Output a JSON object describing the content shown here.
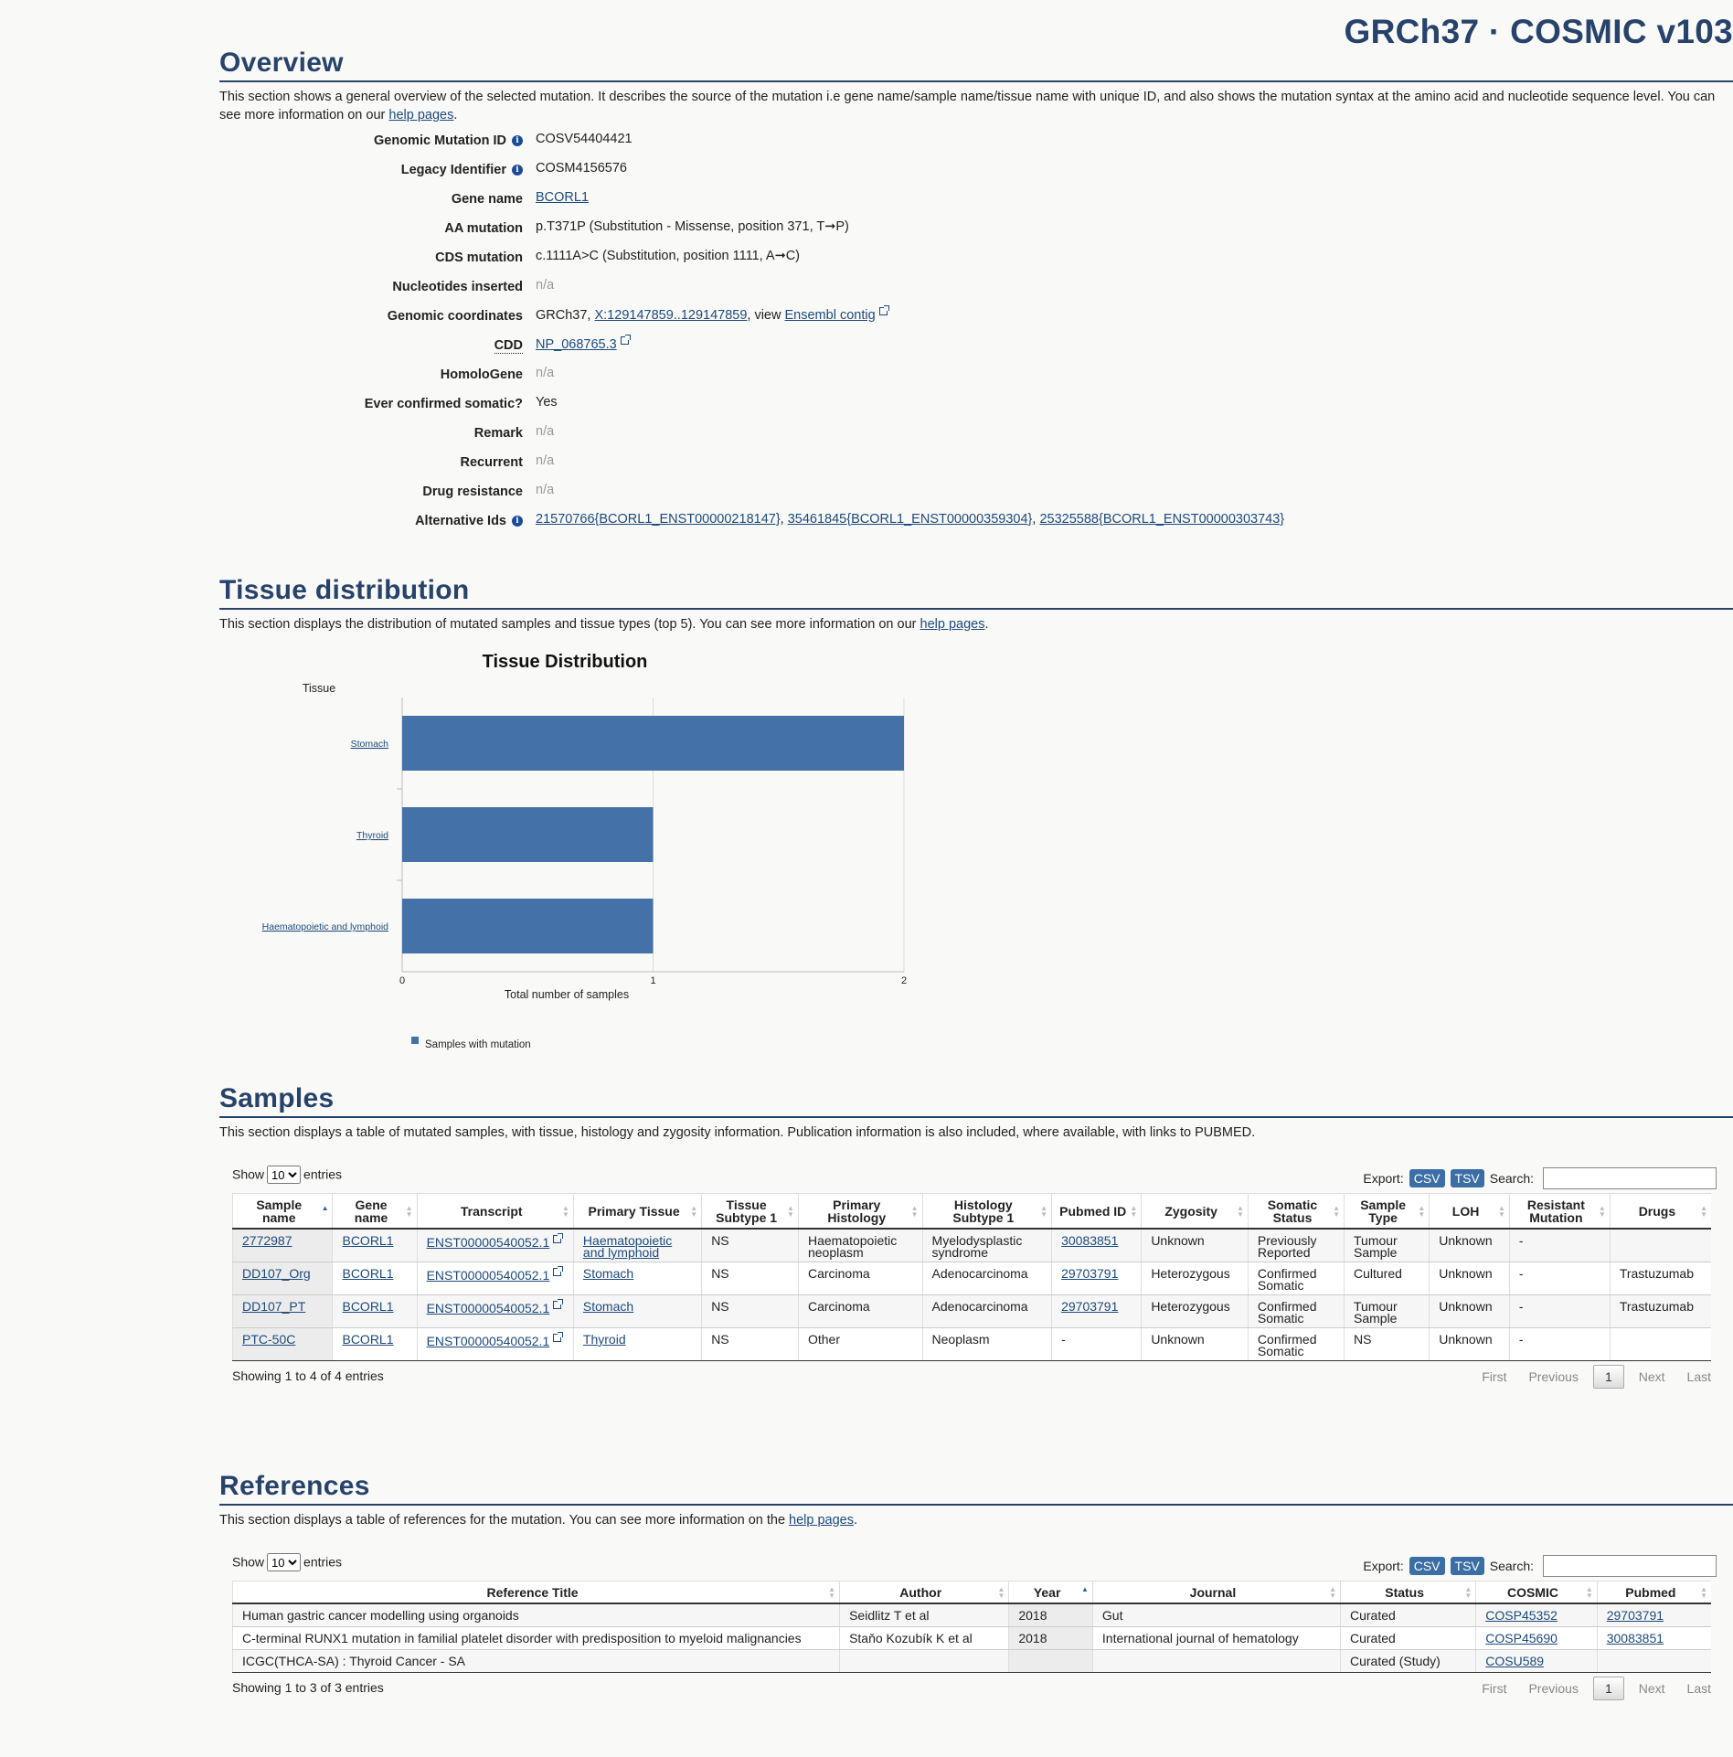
{
  "header": {
    "build": "GRCh37 · COSMIC v103"
  },
  "overview": {
    "title": "Overview",
    "intro_text": "This section shows a general overview of the selected mutation. It describes the source of the mutation i.e gene name/sample name/tissue name with unique ID, and also shows the mutation syntax at the amino acid and nucleotide sequence level. You can see more information on our ",
    "intro_link": "help pages",
    "intro_end": ".",
    "fields": {
      "genomic_mutation_id": {
        "label": "Genomic Mutation ID",
        "value": "COSV54404421"
      },
      "legacy_identifier": {
        "label": "Legacy Identifier",
        "value": "COSM4156576"
      },
      "gene_name": {
        "label": "Gene name",
        "value": "BCORL1"
      },
      "aa_mutation": {
        "label": "AA mutation",
        "value": "p.T371P (Substitution - Missense, position 371, T➞P)"
      },
      "cds_mutation": {
        "label": "CDS mutation",
        "value": "c.1111A>C (Substitution, position 1111, A➞C)"
      },
      "nucleotides_inserted": {
        "label": "Nucleotides inserted",
        "value": "n/a"
      },
      "genomic_coordinates": {
        "label": "Genomic coordinates",
        "prefix": "GRCh37, ",
        "link": "X:129147859..129147859",
        "middle": ", view ",
        "link2": "Ensembl contig"
      },
      "cdd": {
        "label": "CDD",
        "value": "NP_068765.3"
      },
      "homologene": {
        "label": "HomoloGene",
        "value": "n/a"
      },
      "ever_confirmed": {
        "label": "Ever confirmed somatic?",
        "value": "Yes"
      },
      "remark": {
        "label": "Remark",
        "value": "n/a"
      },
      "recurrent": {
        "label": "Recurrent",
        "value": "n/a"
      },
      "drug_resistance": {
        "label": "Drug resistance",
        "value": "n/a"
      },
      "alternative_ids": {
        "label": "Alternative Ids",
        "ids": [
          "21570766{BCORL1_ENST00000218147}",
          "35461845{BCORL1_ENST00000359304}",
          "25325588{BCORL1_ENST00000303743}"
        ],
        "sep": ", "
      }
    }
  },
  "tissue": {
    "title": "Tissue distribution",
    "intro_text": "This section displays the distribution of mutated samples and tissue types (top 5). You can see more information on our ",
    "intro_link": "help pages",
    "intro_end": "."
  },
  "chart_data": {
    "type": "bar",
    "orientation": "horizontal",
    "title": "Tissue Distribution",
    "ylabel": "Tissue",
    "xlabel": "Total number of samples",
    "categories": [
      "Stomach",
      "Thyroid",
      "Haematopoietic and lymphoid"
    ],
    "series": [
      {
        "name": "Samples with mutation",
        "values": [
          2,
          1,
          1
        ],
        "color": "#4472a8"
      }
    ],
    "xlim": [
      0,
      2
    ],
    "xticks": [
      "0",
      "1",
      "2"
    ],
    "grid": true,
    "legend": "bottom-left"
  },
  "samples": {
    "title": "Samples",
    "intro_text": "This section displays a table of mutated samples, with tissue, histology and zygosity information. Publication information is also included, where available, with links to PUBMED.",
    "controls": {
      "show": "Show",
      "entries": "entries",
      "page_size": "10",
      "export": "Export:",
      "csv": "CSV",
      "tsv": "TSV",
      "search": "Search:"
    },
    "columns": [
      "Sample name",
      "Gene name",
      "Transcript",
      "Primary Tissue",
      "Tissue Subtype 1",
      "Primary Histology",
      "Histology Subtype 1",
      "Pubmed ID",
      "Zygosity",
      "Somatic Status",
      "Sample Type",
      "LOH",
      "Resistant Mutation",
      "Drugs"
    ],
    "rows": [
      [
        "2772987",
        "BCORL1",
        "ENST00000540052.1",
        "Haematopoietic and lymphoid",
        "NS",
        "Haematopoietic neoplasm",
        "Myelodysplastic syndrome",
        "30083851",
        "Unknown",
        "Previously Reported",
        "Tumour Sample",
        "Unknown",
        "-",
        ""
      ],
      [
        "DD107_Org",
        "BCORL1",
        "ENST00000540052.1",
        "Stomach",
        "NS",
        "Carcinoma",
        "Adenocarcinoma",
        "29703791",
        "Heterozygous",
        "Confirmed Somatic",
        "Cultured",
        "Unknown",
        "-",
        "Trastuzumab"
      ],
      [
        "DD107_PT",
        "BCORL1",
        "ENST00000540052.1",
        "Stomach",
        "NS",
        "Carcinoma",
        "Adenocarcinoma",
        "29703791",
        "Heterozygous",
        "Confirmed Somatic",
        "Tumour Sample",
        "Unknown",
        "-",
        "Trastuzumab"
      ],
      [
        "PTC-50C",
        "BCORL1",
        "ENST00000540052.1",
        "Thyroid",
        "NS",
        "Other",
        "Neoplasm",
        "-",
        "Unknown",
        "Confirmed Somatic",
        "NS",
        "Unknown",
        "-",
        ""
      ]
    ],
    "info": "Showing 1 to 4 of 4 entries",
    "pager": {
      "first": "First",
      "previous": "Previous",
      "page": "1",
      "next": "Next",
      "last": "Last"
    }
  },
  "references": {
    "title": "References",
    "intro_text": "This section displays a table of references for the mutation. You can see more information on the ",
    "intro_link": "help pages",
    "intro_end": ".",
    "controls": {
      "show": "Show",
      "entries": "entries",
      "page_size": "10",
      "export": "Export:",
      "csv": "CSV",
      "tsv": "TSV",
      "search": "Search:"
    },
    "columns": [
      "Reference Title",
      "Author",
      "Year",
      "Journal",
      "Status",
      "COSMIC",
      "Pubmed"
    ],
    "rows": [
      [
        "Human gastric cancer modelling using organoids",
        "Seidlitz T et al",
        "2018",
        "Gut",
        "Curated",
        "COSP45352",
        "29703791"
      ],
      [
        "C-terminal RUNX1 mutation in familial platelet disorder with predisposition to myeloid malignancies",
        "Staňo Kozubík K et al",
        "2018",
        "International journal of hematology",
        "Curated",
        "COSP45690",
        "30083851"
      ],
      [
        "ICGC(THCA-SA) : Thyroid Cancer - SA",
        "",
        "",
        "",
        "Curated (Study)",
        "COSU589",
        ""
      ]
    ],
    "info": "Showing 1 to 3 of 3 entries",
    "pager": {
      "first": "First",
      "previous": "Previous",
      "page": "1",
      "next": "Next",
      "last": "Last"
    }
  }
}
